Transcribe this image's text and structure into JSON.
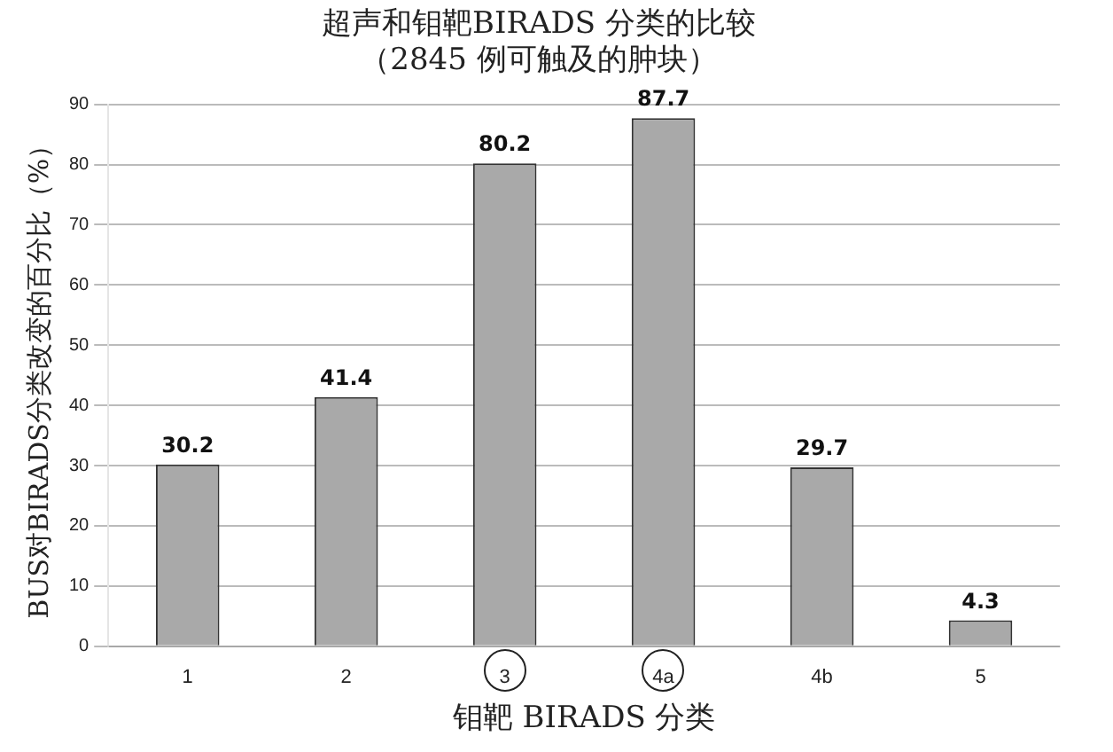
{
  "chart_data": {
    "type": "bar",
    "title": "超声和钼靶BIRADS 分类的比较",
    "subtitle": "（2845 例可触及的肿块）",
    "xlabel": "钼靶 BIRADS 分类",
    "ylabel": "BUS对BIRADS分类改变的百分比（%）",
    "categories": [
      "1",
      "2",
      "3",
      "4a",
      "4b",
      "5"
    ],
    "values": [
      30.2,
      41.4,
      80.2,
      87.7,
      29.7,
      4.3
    ],
    "color": "#a9a9a9",
    "ylim": [
      0,
      90
    ],
    "yticks": [
      0,
      10,
      20,
      30,
      40,
      50,
      60,
      70,
      80,
      90
    ],
    "grid": "y",
    "legend": false,
    "data_labels": true
  }
}
